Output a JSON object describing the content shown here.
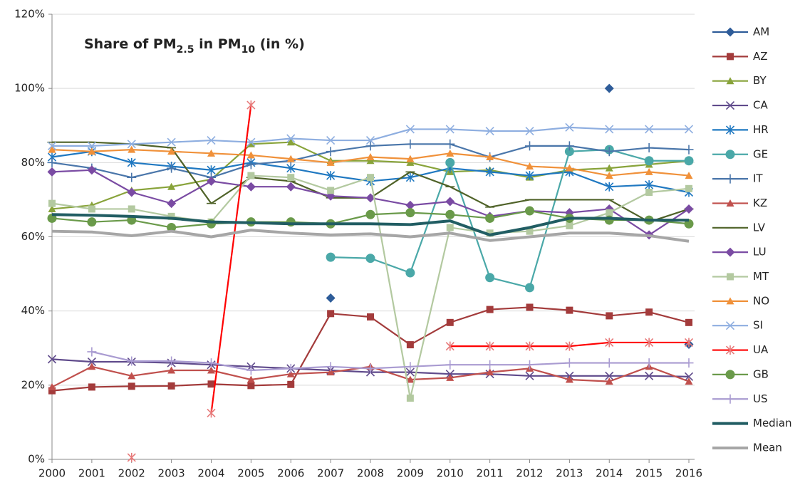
{
  "chart_data": {
    "type": "line",
    "title": [
      "Share of PM",
      "2.5",
      " in PM",
      "10",
      " (in %)"
    ],
    "categories": [
      "2000",
      "2001",
      "2002",
      "2003",
      "2004",
      "2005",
      "2006",
      "2007",
      "2008",
      "2009",
      "2010",
      "2011",
      "2012",
      "2013",
      "2014",
      "2015",
      "2016"
    ],
    "ylim": [
      0,
      120
    ],
    "yticks": [
      {
        "value": 0,
        "label": "0%"
      },
      {
        "value": 20,
        "label": "20%"
      },
      {
        "value": 40,
        "label": "40%"
      },
      {
        "value": 60,
        "label": "60%"
      },
      {
        "value": 80,
        "label": "80%"
      },
      {
        "value": 100,
        "label": "100%"
      },
      {
        "value": 120,
        "label": "120%"
      }
    ],
    "grid": true,
    "legend": "right",
    "series": [
      {
        "name": "AM",
        "color": "#2e5c99",
        "marker": "diamond",
        "values": [
          null,
          null,
          null,
          null,
          null,
          null,
          null,
          43.5,
          null,
          null,
          null,
          null,
          null,
          null,
          100,
          null,
          31
        ]
      },
      {
        "name": "AZ",
        "color": "#a33b3b",
        "marker": "square",
        "values": [
          18.5,
          19.5,
          19.7,
          19.8,
          20.3,
          19.9,
          20.2,
          39.3,
          38.4,
          30.9,
          36.9,
          40.4,
          41,
          40.2,
          38.7,
          39.7,
          36.9
        ]
      },
      {
        "name": "BY",
        "color": "#88a33a",
        "marker": "triangle",
        "values": [
          67.5,
          68.5,
          72.5,
          73.5,
          75.5,
          85,
          85.5,
          80.5,
          80.5,
          80,
          77.5,
          78,
          76,
          78,
          78.5,
          79.5,
          80.5
        ]
      },
      {
        "name": "CA",
        "color": "#5f4a8b",
        "marker": "x",
        "values": [
          27,
          26.3,
          26.3,
          26,
          25.5,
          25,
          24.5,
          24,
          23.5,
          23.5,
          23,
          23,
          22.5,
          22.5,
          22.5,
          22.5,
          22.3
        ]
      },
      {
        "name": "HR",
        "color": "#1f78c1",
        "marker": "asterisk",
        "values": [
          81.5,
          83,
          80,
          79,
          78,
          80,
          78.5,
          76.5,
          75,
          76,
          78.5,
          77.5,
          76.5,
          77.5,
          73.5,
          74,
          72
        ]
      },
      {
        "name": "GE",
        "color": "#4aa8a8",
        "marker": "circle",
        "values": [
          null,
          null,
          null,
          null,
          null,
          null,
          null,
          54.5,
          54.2,
          50.3,
          80,
          49,
          46.3,
          83,
          83.5,
          80.5,
          80.5
        ]
      },
      {
        "name": "IT",
        "color": "#4a76aa",
        "marker": "plus",
        "values": [
          80,
          78.5,
          76,
          78.5,
          76,
          79.5,
          80.5,
          83,
          84.5,
          85,
          85,
          81.5,
          84.5,
          84.5,
          83,
          84,
          83.5
        ]
      },
      {
        "name": "KZ",
        "color": "#c0504d",
        "marker": "triangle",
        "values": [
          19.5,
          25,
          22.5,
          24,
          24,
          21.5,
          23,
          23.5,
          25,
          21.5,
          22,
          23.5,
          24.5,
          21.5,
          21,
          25,
          21
        ]
      },
      {
        "name": "LV",
        "color": "#4f6228",
        "marker": "dash",
        "values": [
          85.5,
          85.5,
          85,
          84,
          69,
          76,
          75,
          70.5,
          70.5,
          77.5,
          73.5,
          68,
          70,
          70,
          70,
          64,
          67.5
        ]
      },
      {
        "name": "LU",
        "color": "#7a4ba3",
        "marker": "diamond",
        "values": [
          77.5,
          78,
          72,
          69,
          75,
          73.5,
          73.5,
          71,
          70.5,
          68.5,
          69.5,
          65.5,
          67,
          66.5,
          67.5,
          60.5,
          67.5
        ]
      },
      {
        "name": "MT",
        "color": "#b3c9a0",
        "marker": "square",
        "values": [
          69,
          67.5,
          67.5,
          65.5,
          64,
          76.5,
          76,
          72.5,
          76,
          16.5,
          62.5,
          61,
          61.5,
          63,
          66.5,
          72,
          73
        ]
      },
      {
        "name": "NO",
        "color": "#f0913a",
        "marker": "triangle",
        "values": [
          83.5,
          83,
          83.5,
          83,
          82.5,
          82,
          81,
          80,
          81.5,
          81,
          82.5,
          81.5,
          79,
          78.5,
          76.5,
          77.5,
          76.5
        ]
      },
      {
        "name": "SI",
        "color": "#8eaee0",
        "marker": "x",
        "values": [
          84.5,
          84.5,
          85,
          85.5,
          86,
          85.5,
          86.5,
          86,
          86,
          89,
          89,
          88.5,
          88.5,
          89.5,
          89,
          89,
          89
        ]
      },
      {
        "name": "UA",
        "color": "#ff0000",
        "marker": "asterisk",
        "marker_color": "#e77a7a",
        "values": [
          null,
          null,
          0.5,
          null,
          12.5,
          95.5,
          null,
          null,
          null,
          null,
          30.5,
          30.5,
          30.5,
          30.5,
          31.5,
          31.5,
          31.5
        ]
      },
      {
        "name": "GB",
        "color": "#6a9a4a",
        "marker": "circle",
        "values": [
          65,
          64,
          64.5,
          62.5,
          63.5,
          64,
          64,
          63.5,
          66,
          66.5,
          66,
          65,
          67,
          65,
          64.5,
          64.5,
          63.5
        ]
      },
      {
        "name": "US",
        "color": "#a99bd1",
        "marker": "plus",
        "values": [
          null,
          29,
          26.5,
          26.5,
          26,
          24,
          24.5,
          25,
          24.5,
          25,
          25.5,
          25.5,
          25.5,
          26,
          26,
          26,
          26
        ]
      },
      {
        "name": "Median",
        "color": "#215d63",
        "marker": "none",
        "line_width": 4,
        "values": [
          66,
          65.8,
          65.5,
          65,
          64,
          63.8,
          63.5,
          63.5,
          63.5,
          63.3,
          64.3,
          60.5,
          62.5,
          65,
          65,
          64.5,
          64.5
        ]
      },
      {
        "name": "Mean",
        "color": "#a6a6a6",
        "marker": "none",
        "line_width": 4,
        "values": [
          61.5,
          61.3,
          60.3,
          61.5,
          60,
          61.8,
          61,
          60.5,
          60.8,
          60,
          61,
          59,
          60,
          61,
          61,
          60.3,
          58.8
        ]
      }
    ]
  }
}
